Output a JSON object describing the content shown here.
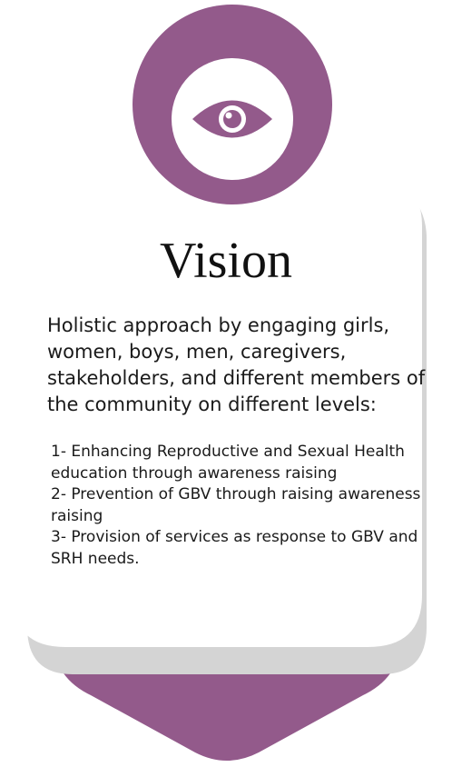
{
  "colors": {
    "accent": "#935a8b",
    "panel": "#ffffff",
    "shadow": "#d4d4d4",
    "text": "#1a1a1a"
  },
  "icon": "eye-icon",
  "title": "Vision",
  "intro": "Holistic approach by engaging girls, women, boys, men, caregivers, stakeholders, and different members of the community on different levels:",
  "items": [
    "1- Enhancing Reproductive and Sexual Health education through awareness raising",
    "2- Prevention of GBV through raising awareness raising",
    "3- Provision of services as response to GBV and SRH needs."
  ]
}
